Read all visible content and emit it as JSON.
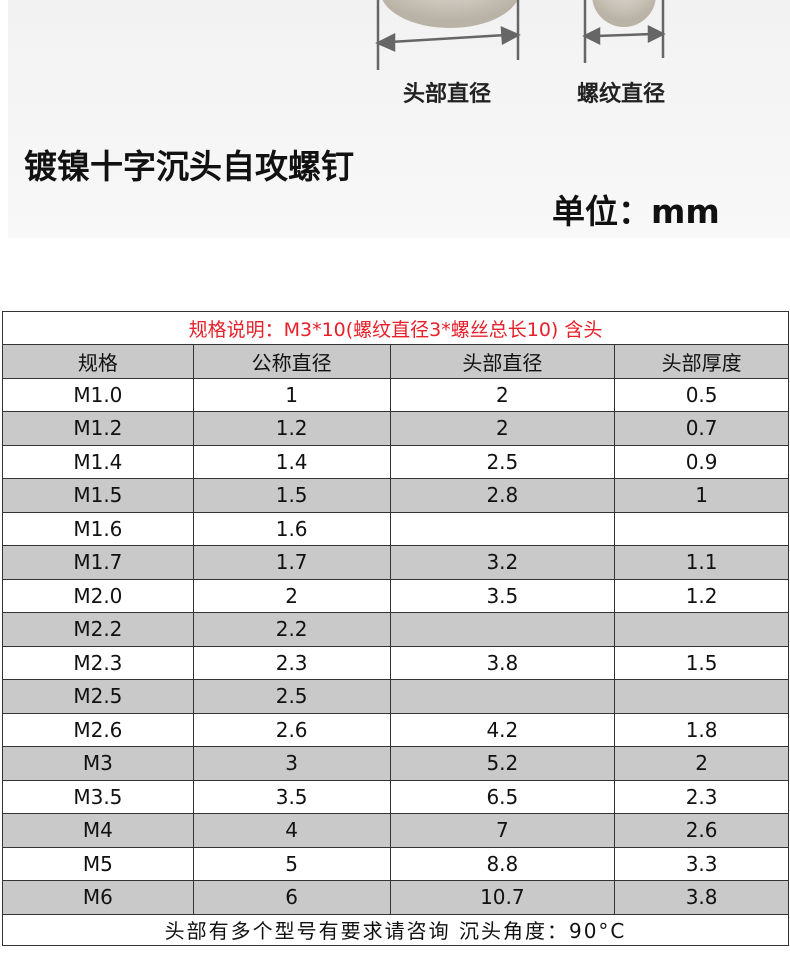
{
  "hero": {
    "head_diameter_label": "头部直径",
    "thread_diameter_label": "螺纹直径",
    "product_title": "镀镍十字沉头自攻螺钉",
    "unit_label": "单位：mm"
  },
  "table": {
    "spec_note": "规格说明：M3*10(螺纹直径3*螺丝总长10)  含头",
    "headers": [
      "规格",
      "公称直径",
      "头部直径",
      "头部厚度"
    ],
    "rows": [
      [
        "M1.0",
        "1",
        "2",
        "0.5"
      ],
      [
        "M1.2",
        "1.2",
        "2",
        "0.7"
      ],
      [
        "M1.4",
        "1.4",
        "2.5",
        "0.9"
      ],
      [
        "M1.5",
        "1.5",
        "2.8",
        "1"
      ],
      [
        "M1.6",
        "1.6",
        "",
        ""
      ],
      [
        "M1.7",
        "1.7",
        "3.2",
        "1.1"
      ],
      [
        "M2.0",
        "2",
        "3.5",
        "1.2"
      ],
      [
        "M2.2",
        "2.2",
        "",
        ""
      ],
      [
        "M2.3",
        "2.3",
        "3.8",
        "1.5"
      ],
      [
        "M2.5",
        "2.5",
        "",
        ""
      ],
      [
        "M2.6",
        "2.6",
        "4.2",
        "1.8"
      ],
      [
        "M3",
        "3",
        "5.2",
        "2"
      ],
      [
        "M3.5",
        "3.5",
        "6.5",
        "2.3"
      ],
      [
        "M4",
        "4",
        "7",
        "2.6"
      ],
      [
        "M5",
        "5",
        "8.8",
        "3.3"
      ],
      [
        "M6",
        "6",
        "10.7",
        "3.8"
      ]
    ],
    "footer_note": "头部有多个型号有要求请咨询    沉头角度：90°C"
  },
  "colors": {
    "spec_note": "#e8202a",
    "row_stripe": "#c9c9c9"
  }
}
